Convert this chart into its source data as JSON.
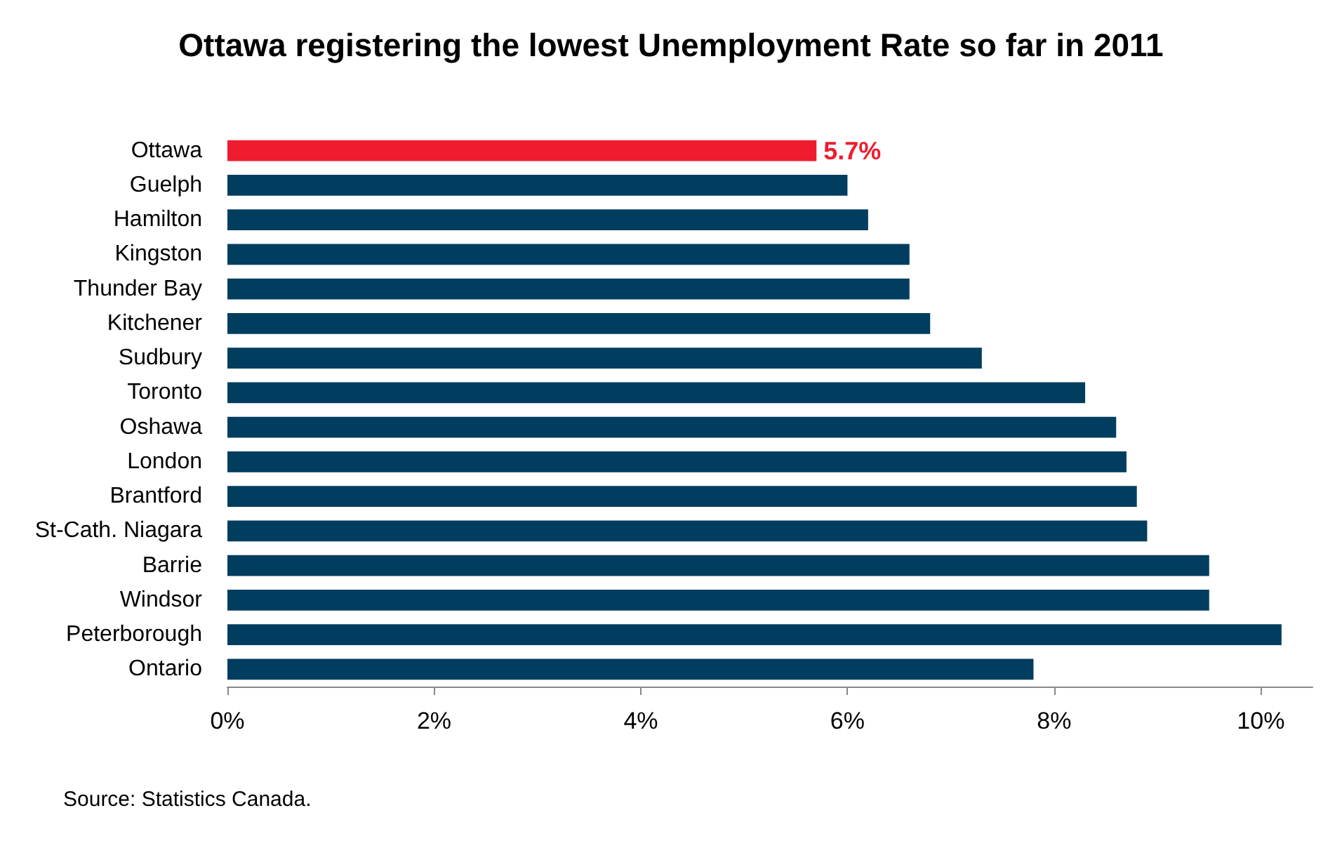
{
  "chart_data": {
    "type": "bar",
    "orientation": "horizontal",
    "title": "Ottawa registering the lowest Unemployment Rate so far in 2011",
    "categories": [
      "Ottawa",
      "Guelph",
      "Hamilton",
      "Kingston",
      "Thunder Bay",
      "Kitchener",
      "Sudbury",
      "Toronto",
      "Oshawa",
      "London",
      "Brantford",
      "St-Cath. Niagara",
      "Barrie",
      "Windsor",
      "Peterborough",
      "Ontario"
    ],
    "values": [
      5.7,
      6.0,
      6.2,
      6.6,
      6.6,
      6.8,
      7.3,
      8.3,
      8.6,
      8.7,
      8.8,
      8.9,
      9.5,
      9.5,
      10.2,
      7.8
    ],
    "colors": [
      "#ee1c2e",
      "#003d5f",
      "#003d5f",
      "#003d5f",
      "#003d5f",
      "#003d5f",
      "#003d5f",
      "#003d5f",
      "#003d5f",
      "#003d5f",
      "#003d5f",
      "#003d5f",
      "#003d5f",
      "#003d5f",
      "#003d5f",
      "#003d5f"
    ],
    "value_labels": [
      "5.7%",
      null,
      null,
      null,
      null,
      null,
      null,
      null,
      null,
      null,
      null,
      null,
      null,
      null,
      null,
      null
    ],
    "xlim": [
      0,
      10.5
    ],
    "xticks": [
      {
        "value": 0,
        "label": "0%"
      },
      {
        "value": 2,
        "label": "2%"
      },
      {
        "value": 4,
        "label": "4%"
      },
      {
        "value": 6,
        "label": "6%"
      },
      {
        "value": 8,
        "label": "8%"
      },
      {
        "value": 10,
        "label": "10%"
      }
    ],
    "grid": false,
    "annotations": [
      "Source: Statistics Canada."
    ]
  }
}
